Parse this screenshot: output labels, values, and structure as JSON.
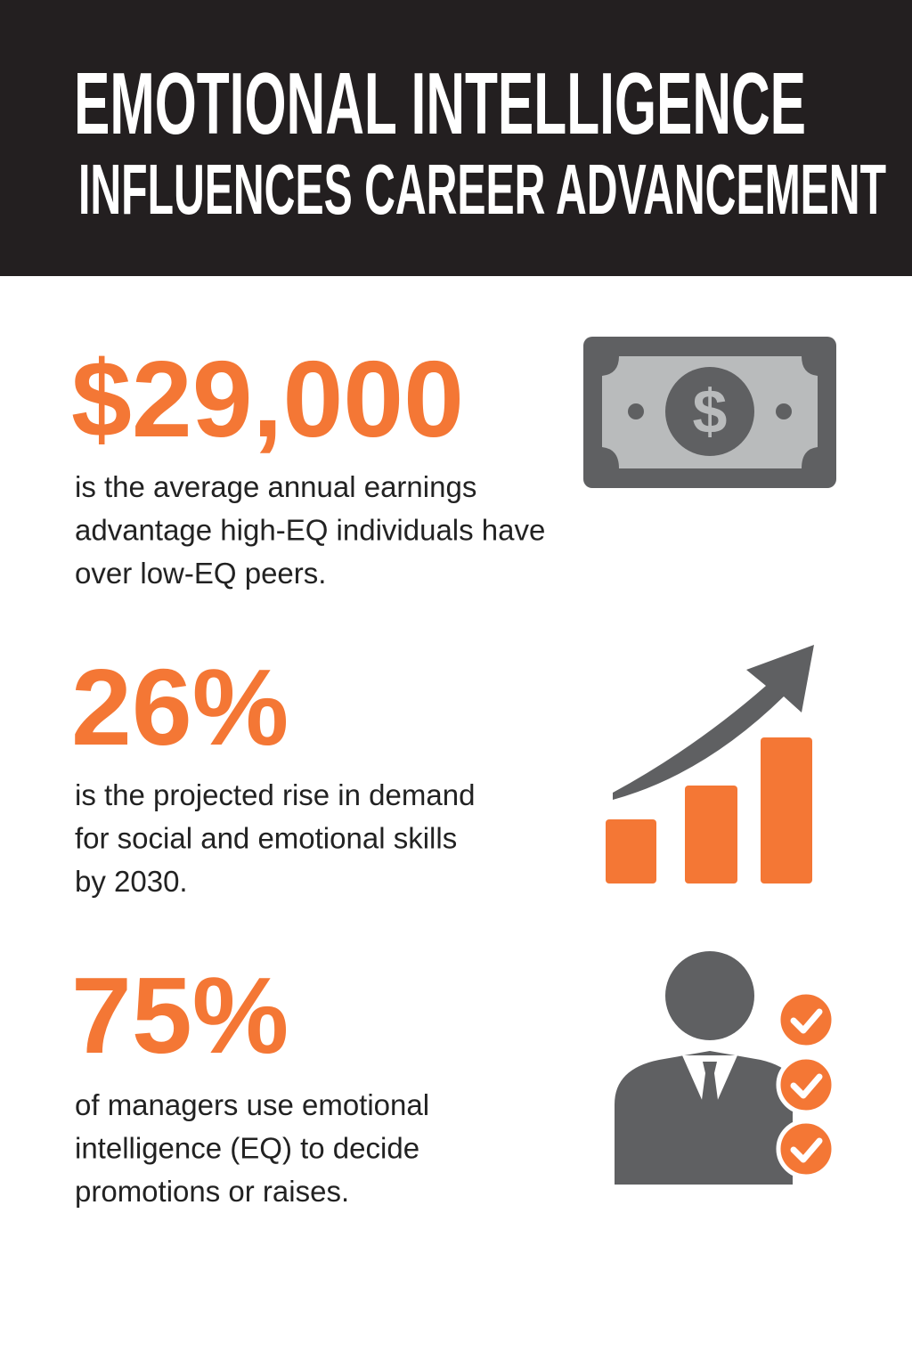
{
  "header": {
    "title": [
      "EMOTIONAL INTELLIGENCE",
      "INFLUENCES CAREER ADVANCEMENT"
    ]
  },
  "stats": [
    {
      "value": "$29,000",
      "text": [
        "is the average annual earnings",
        "advantage high-EQ individuals have",
        "over low-EQ peers."
      ]
    },
    {
      "value": "26%",
      "text": [
        "is the projected rise in demand",
        "for social and emotional skills",
        "by 2030."
      ]
    },
    {
      "value": "75%",
      "text": [
        "of managers use emotional",
        "intelligence (EQ) to decide",
        "promotions or raises."
      ]
    }
  ]
}
